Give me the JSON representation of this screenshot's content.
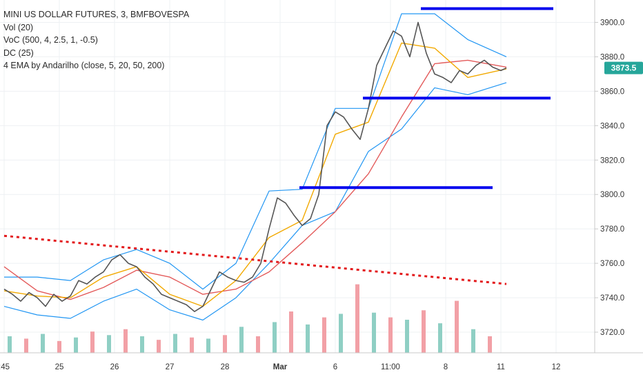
{
  "legend": {
    "symbol": "MINI US DOLLAR FUTURES, 3, BMFBOVESPA",
    "vol": "Vol (20)",
    "voc": "VoC (500, 4, 2.5, 1, -0.5)",
    "dc": "DC (25)",
    "ema": "4 EMA by Andarilho (close, 5, 20, 50, 200)"
  },
  "price_tag": {
    "value": "3873.5",
    "color": "#26a69a"
  },
  "colors": {
    "price": "#555555",
    "donchian": "#2196f3",
    "ema_fast": "#f2a900",
    "ema_mid": "#e35a5a",
    "support_resistance": "#0000ee",
    "trend": "#e31a1c",
    "vol_up": "#8fcfc4",
    "vol_down": "#f2a0a6"
  },
  "chart_data": {
    "type": "line",
    "title": "MINI US DOLLAR FUTURES, 3, BMFBOVESPA",
    "ylim": [
      3710,
      3915
    ],
    "y_ticks": [
      3720.0,
      3740.0,
      3760.0,
      3780.0,
      3800.0,
      3820.0,
      3840.0,
      3860.0,
      3880.0,
      3900.0
    ],
    "x_ticks": [
      {
        "label": ":45",
        "pos": 0
      },
      {
        "label": "25",
        "pos": 1
      },
      {
        "label": "26",
        "pos": 2
      },
      {
        "label": "27",
        "pos": 3
      },
      {
        "label": "28",
        "pos": 4
      },
      {
        "label": "Mar",
        "pos": 5
      },
      {
        "label": "6",
        "pos": 6
      },
      {
        "label": "11:00",
        "pos": 7
      },
      {
        "label": "8",
        "pos": 8
      },
      {
        "label": "11",
        "pos": 9
      },
      {
        "label": "12",
        "pos": 10
      }
    ],
    "grid": true,
    "series": [
      {
        "kind": "price",
        "x": [
          0.0,
          0.15,
          0.3,
          0.45,
          0.6,
          0.75,
          0.9,
          1.05,
          1.2,
          1.35,
          1.5,
          1.65,
          1.8,
          1.95,
          2.1,
          2.25,
          2.4,
          2.55,
          2.7,
          2.85,
          3.0,
          3.15,
          3.3,
          3.45,
          3.6,
          3.75,
          3.9,
          4.05,
          4.2,
          4.35,
          4.5,
          4.65,
          4.8,
          4.95,
          5.1,
          5.25,
          5.4,
          5.55,
          5.7,
          5.85,
          6.0,
          6.15,
          6.3,
          6.45,
          6.6,
          6.75,
          6.9,
          7.05,
          7.2,
          7.35,
          7.5,
          7.65,
          7.8,
          7.95,
          8.1,
          8.25,
          8.4,
          8.55,
          8.7,
          8.85,
          9.0,
          9.1
        ],
        "values": [
          3745,
          3742,
          3738,
          3743,
          3740,
          3735,
          3742,
          3738,
          3741,
          3750,
          3748,
          3752,
          3755,
          3762,
          3765,
          3760,
          3758,
          3752,
          3748,
          3742,
          3740,
          3738,
          3736,
          3732,
          3735,
          3745,
          3755,
          3752,
          3750,
          3749,
          3752,
          3760,
          3780,
          3798,
          3795,
          3788,
          3782,
          3786,
          3800,
          3840,
          3848,
          3845,
          3838,
          3832,
          3850,
          3875,
          3885,
          3895,
          3892,
          3880,
          3900,
          3882,
          3870,
          3868,
          3865,
          3872,
          3870,
          3875,
          3878,
          3874,
          3872,
          3873.5
        ]
      },
      {
        "kind": "ema_fast",
        "x": [
          0.0,
          0.6,
          1.2,
          1.8,
          2.4,
          3.0,
          3.6,
          4.2,
          4.8,
          5.4,
          6.0,
          6.6,
          7.2,
          7.8,
          8.4,
          9.1
        ],
        "values": [
          3744,
          3741,
          3740,
          3752,
          3758,
          3742,
          3735,
          3750,
          3775,
          3785,
          3835,
          3842,
          3888,
          3885,
          3868,
          3873
        ]
      },
      {
        "kind": "ema_mid",
        "x": [
          0.0,
          0.6,
          1.2,
          1.8,
          2.4,
          3.0,
          3.6,
          4.2,
          4.8,
          5.4,
          6.0,
          6.6,
          7.2,
          7.8,
          8.4,
          9.1
        ],
        "values": [
          3758,
          3744,
          3739,
          3746,
          3756,
          3752,
          3742,
          3745,
          3755,
          3772,
          3790,
          3812,
          3845,
          3876,
          3878,
          3874
        ]
      },
      {
        "kind": "donchian_upper",
        "x": [
          0.0,
          0.6,
          1.2,
          1.8,
          2.4,
          3.0,
          3.6,
          4.2,
          4.8,
          5.4,
          6.0,
          6.6,
          7.2,
          7.8,
          8.4,
          9.1
        ],
        "values": [
          3752,
          3752,
          3750,
          3762,
          3768,
          3760,
          3745,
          3760,
          3802,
          3803,
          3850,
          3850,
          3905,
          3905,
          3890,
          3880
        ]
      },
      {
        "kind": "donchian_lower",
        "x": [
          0.0,
          0.6,
          1.2,
          1.8,
          2.4,
          3.0,
          3.6,
          4.2,
          4.8,
          5.4,
          6.0,
          6.6,
          7.2,
          7.8,
          8.4,
          9.1
        ],
        "values": [
          3735,
          3730,
          3728,
          3738,
          3745,
          3733,
          3727,
          3740,
          3760,
          3782,
          3790,
          3825,
          3838,
          3862,
          3858,
          3865
        ]
      },
      {
        "kind": "hline",
        "x": [
          7.55,
          9.95
        ],
        "values": [
          3908,
          3908
        ]
      },
      {
        "kind": "hline",
        "x": [
          6.5,
          9.9
        ],
        "values": [
          3856,
          3856
        ]
      },
      {
        "kind": "hline",
        "x": [
          5.35,
          8.85
        ],
        "values": [
          3804,
          3804
        ]
      },
      {
        "kind": "trend",
        "x": [
          0.0,
          9.1
        ],
        "values": [
          3776,
          3748
        ]
      }
    ],
    "volume": {
      "x": [
        0.1,
        0.4,
        0.7,
        1.0,
        1.3,
        1.6,
        1.9,
        2.2,
        2.5,
        2.8,
        3.1,
        3.4,
        3.7,
        4.0,
        4.3,
        4.6,
        4.9,
        5.2,
        5.5,
        5.8,
        6.1,
        6.4,
        6.7,
        7.0,
        7.3,
        7.6,
        7.9,
        8.2,
        8.5,
        8.8
      ],
      "values": [
        14,
        12,
        16,
        10,
        13,
        18,
        15,
        20,
        14,
        11,
        16,
        13,
        12,
        15,
        22,
        14,
        26,
        35,
        24,
        30,
        33,
        58,
        34,
        30,
        28,
        36,
        25,
        44,
        20,
        14
      ]
    }
  }
}
